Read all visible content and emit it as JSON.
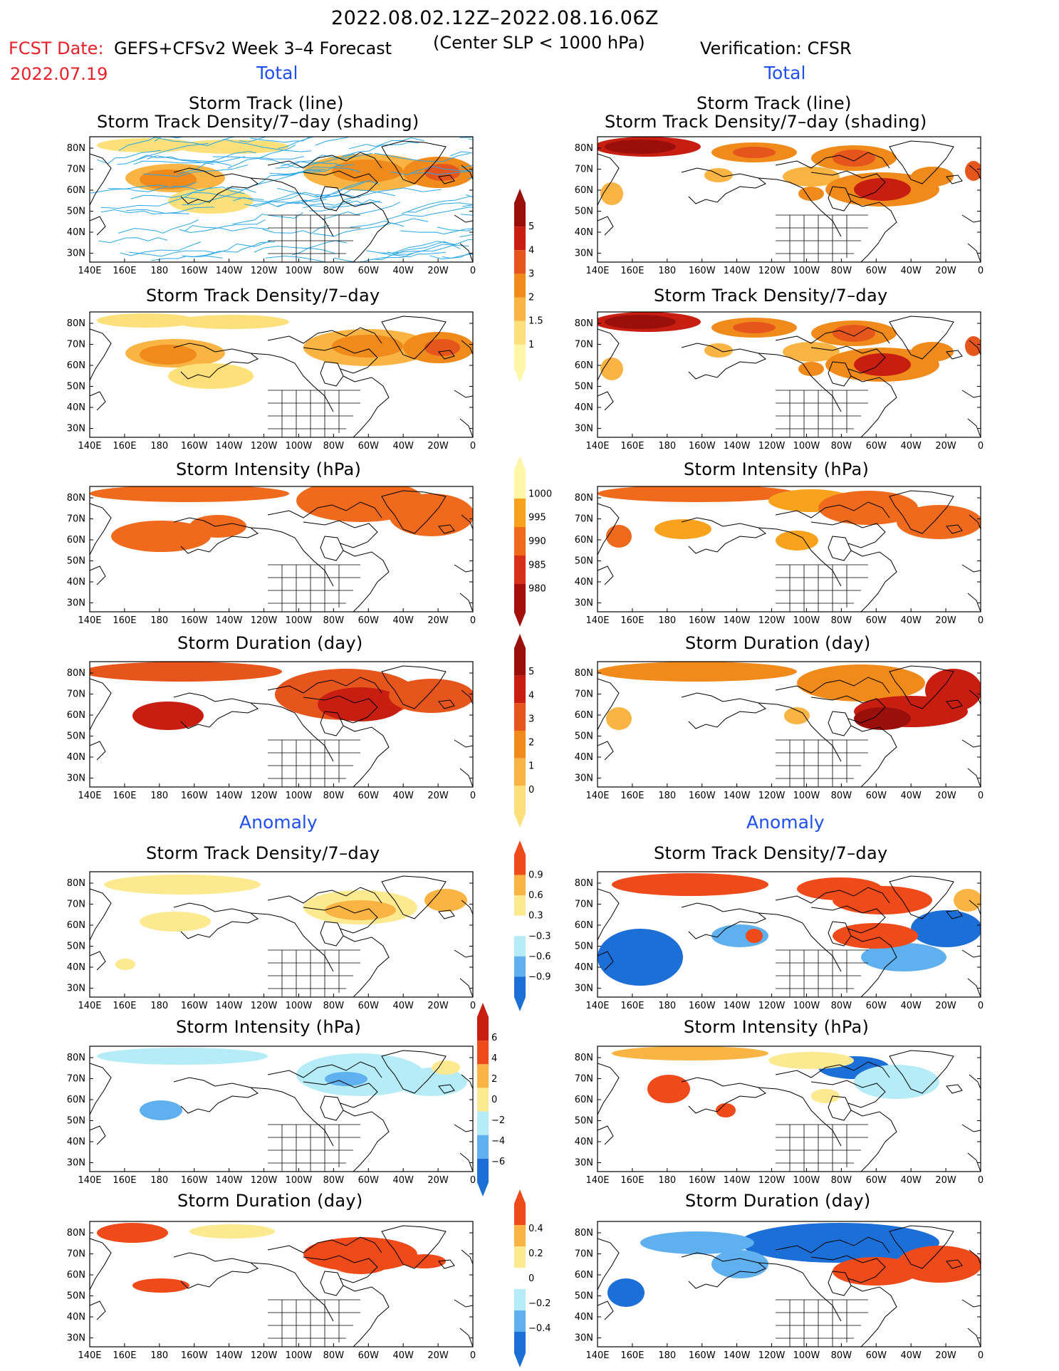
{
  "header": {
    "date_range": "2022.08.02.12Z–2022.08.16.06Z",
    "fcst_label": "FCST Date:",
    "fcst_date": "2022.07.19",
    "model": "GEFS+CFSv2 Week 3–4 Forecast",
    "criterion": "(Center SLP < 1000 hPa)",
    "verification": "Verification: CFSR"
  },
  "sections": {
    "total_left": "Total",
    "total_right": "Total",
    "anomaly_left": "Anomaly",
    "anomaly_right": "Anomaly"
  },
  "axes": {
    "lat_labels": [
      "80N",
      "70N",
      "60N",
      "50N",
      "40N",
      "30N"
    ],
    "lon_labels": [
      "140E",
      "160E",
      "180",
      "160W",
      "140W",
      "120W",
      "100W",
      "80W",
      "60W",
      "40W",
      "20W",
      "0"
    ]
  },
  "panels": [
    {
      "title1": "Storm Track (line)",
      "title2": "Storm Track Density/7–day (shading)",
      "left_scheme": "density",
      "right_scheme": "density",
      "tracks": true
    },
    {
      "title1": "",
      "title2": "Storm Track Density/7–day",
      "left_scheme": "density",
      "right_scheme": "density",
      "tracks": false
    },
    {
      "title1": "",
      "title2": "Storm Intensity (hPa)",
      "left_scheme": "intensity",
      "right_scheme": "intensity",
      "tracks": false
    },
    {
      "title1": "",
      "title2": "Storm Duration (day)",
      "left_scheme": "duration",
      "right_scheme": "duration",
      "tracks": false
    },
    {
      "title1": "",
      "title2": "Storm Track Density/7–day",
      "left_scheme": "anom",
      "right_scheme": "anom",
      "tracks": false
    },
    {
      "title1": "",
      "title2": "Storm Intensity (hPa)",
      "left_scheme": "anom_int",
      "right_scheme": "anom_int",
      "tracks": false
    },
    {
      "title1": "",
      "title2": "Storm Duration (day)",
      "left_scheme": "anom",
      "right_scheme": "anom",
      "tracks": false
    }
  ],
  "colorbars": [
    {
      "id": "density",
      "labels": [
        "5",
        "4",
        "3",
        "2",
        "1.5",
        "1"
      ]
    },
    {
      "id": "intensity",
      "labels": [
        "1000",
        "995",
        "990",
        "985",
        "980"
      ]
    },
    {
      "id": "duration",
      "labels": [
        "5",
        "4",
        "3",
        "2",
        "1",
        "0"
      ]
    },
    {
      "id": "anom_density",
      "labels": [
        "0.9",
        "0.6",
        "0.3",
        "−0.3",
        "−0.6",
        "−0.9"
      ]
    },
    {
      "id": "anom_intensity",
      "labels": [
        "6",
        "4",
        "2",
        "0",
        "−2",
        "−4",
        "−6"
      ]
    },
    {
      "id": "anom_duration",
      "labels": [
        "0.4",
        "0.2",
        "0",
        "−0.2",
        "−0.4"
      ]
    }
  ],
  "colors": {
    "density": [
      "#fff6a8",
      "#fde07a",
      "#f9b443",
      "#f08a1a",
      "#e6561c",
      "#c81e12",
      "#9b0f0a"
    ],
    "intensity": [
      "#fff6a8",
      "#f9a21e",
      "#ef6a1c",
      "#d6301a",
      "#a3100c"
    ],
    "anom_pos": [
      "#fde98f",
      "#f9b443",
      "#ee4a1a"
    ],
    "anom_neg": [
      "#b5ecf7",
      "#5fb0ee",
      "#1d6fd8"
    ],
    "coast": "#000000",
    "track": "#2aa6e8"
  }
}
